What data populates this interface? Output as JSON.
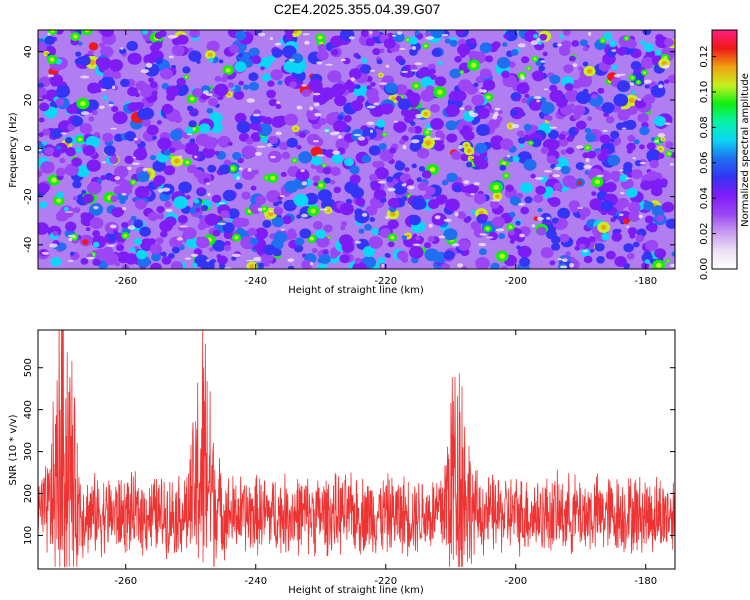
{
  "title": "C2E4.2025.355.04.39.G07",
  "colors": {
    "snr_line": "#ee3333",
    "colormap": [
      "#ffffff",
      "#ede0f5",
      "#c79af0",
      "#9b45f5",
      "#7e1cf6",
      "#3434f7",
      "#1f6ff0",
      "#0ad6f5",
      "#08f2a8",
      "#10f010",
      "#c8f020",
      "#f0a010",
      "#f01818",
      "#ff2080"
    ]
  },
  "chart_data": [
    {
      "type": "heatmap",
      "title": "",
      "xlabel": "Height of straight line (km)",
      "ylabel": "Frequency (Hz)",
      "xlim": [
        -273.5,
        -175.5
      ],
      "ylim": [
        -50,
        49
      ],
      "xticks": [
        -260,
        -240,
        -220,
        -200,
        -180
      ],
      "yticks": [
        -40,
        -20,
        0,
        20,
        40
      ],
      "colorbar": {
        "label": "Normalized spectral amplitude",
        "range": [
          0,
          0.135
        ],
        "ticks": [
          0.0,
          0.02,
          0.04,
          0.06,
          0.08,
          0.1,
          0.12
        ]
      }
    },
    {
      "type": "line",
      "title": "",
      "xlabel": "Height of straight line (km)",
      "ylabel": "SNR (10 * v/v)",
      "xlim": [
        -273.5,
        -175.5
      ],
      "ylim": [
        20,
        590
      ],
      "xticks": [
        -260,
        -240,
        -220,
        -200,
        -180
      ],
      "yticks": [
        100,
        200,
        300,
        400,
        500
      ],
      "series": [
        {
          "baseline": 150,
          "peaks": [
            {
              "x": -269.5,
              "y": 590
            },
            {
              "x": -248.0,
              "y": 480
            },
            {
              "x": -209.0,
              "y": 470
            }
          ]
        }
      ]
    }
  ]
}
